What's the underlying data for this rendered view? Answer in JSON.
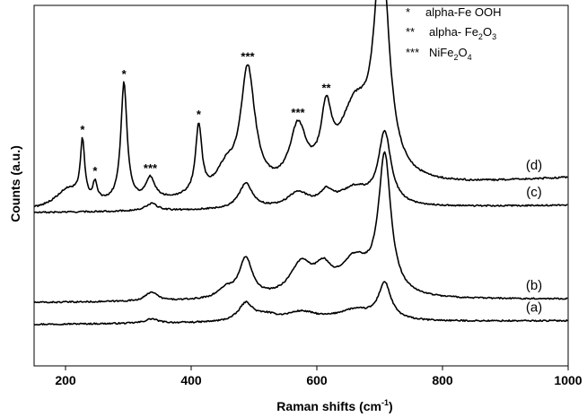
{
  "chart_data": {
    "type": "line",
    "xlabel": "Raman shifts (cm",
    "xlabel_sup": "-1",
    "xlabel_close": ")",
    "ylabel": "Counts (a.u.)",
    "xlim": [
      150,
      1000
    ],
    "xticks": [
      200,
      400,
      600,
      800,
      1000
    ],
    "ylim": [
      0,
      1
    ],
    "yticks_shown": false,
    "grid": false,
    "legend": {
      "placement": "top-right",
      "entries": [
        {
          "marker": "*",
          "text": "alpha-Fe OOH"
        },
        {
          "marker": "**",
          "text": "alpha- Fe",
          "sub1": "2",
          "mid": "O",
          "sub2": "3"
        },
        {
          "marker": "***",
          "text": "NiFe",
          "sub1": "2",
          "mid": "O",
          "sub2": "4"
        }
      ]
    },
    "series": [
      {
        "name": "(a)",
        "baseline": 0.115,
        "slope": 0.01,
        "noise": 0.004,
        "peaks": [
          {
            "center": 337,
            "height": 0.012,
            "width": 12
          },
          {
            "center": 487,
            "height": 0.05,
            "width": 14
          },
          {
            "center": 520,
            "height": 0.015,
            "width": 20
          },
          {
            "center": 575,
            "height": 0.025,
            "width": 30
          },
          {
            "center": 660,
            "height": 0.03,
            "width": 35
          },
          {
            "center": 708,
            "height": 0.1,
            "width": 12
          }
        ]
      },
      {
        "name": "(b)",
        "baseline": 0.175,
        "slope": 0.01,
        "noise": 0.004,
        "peaks": [
          {
            "center": 337,
            "height": 0.025,
            "width": 11
          },
          {
            "center": 455,
            "height": 0.025,
            "width": 15
          },
          {
            "center": 487,
            "height": 0.11,
            "width": 13
          },
          {
            "center": 575,
            "height": 0.09,
            "width": 22
          },
          {
            "center": 610,
            "height": 0.06,
            "width": 15
          },
          {
            "center": 660,
            "height": 0.1,
            "width": 30
          },
          {
            "center": 708,
            "height": 0.38,
            "width": 12
          }
        ]
      },
      {
        "name": "(c)",
        "baseline": 0.425,
        "slope": 0.02,
        "noise": 0.004,
        "peaks": [
          {
            "center": 337,
            "height": 0.02,
            "width": 11
          },
          {
            "center": 487,
            "height": 0.07,
            "width": 13
          },
          {
            "center": 570,
            "height": 0.04,
            "width": 20
          },
          {
            "center": 615,
            "height": 0.035,
            "width": 12
          },
          {
            "center": 660,
            "height": 0.05,
            "width": 30
          },
          {
            "center": 708,
            "height": 0.2,
            "width": 12
          }
        ]
      },
      {
        "name": "(d)",
        "baseline": 0.43,
        "slope": 0.09,
        "noise": 0.005,
        "peaks": [
          {
            "center": 205,
            "height": 0.05,
            "width": 25
          },
          {
            "center": 227,
            "height": 0.16,
            "width": 4
          },
          {
            "center": 247,
            "height": 0.05,
            "width": 4
          },
          {
            "center": 293,
            "height": 0.33,
            "width": 6
          },
          {
            "center": 335,
            "height": 0.06,
            "width": 9
          },
          {
            "center": 412,
            "height": 0.19,
            "width": 6
          },
          {
            "center": 455,
            "height": 0.06,
            "width": 18
          },
          {
            "center": 490,
            "height": 0.34,
            "width": 14
          },
          {
            "center": 570,
            "height": 0.16,
            "width": 16
          },
          {
            "center": 615,
            "height": 0.17,
            "width": 10
          },
          {
            "center": 660,
            "height": 0.2,
            "width": 30
          },
          {
            "center": 703,
            "height": 0.62,
            "width": 14
          }
        ]
      }
    ],
    "peak_annotations": [
      {
        "x": 227,
        "label": "*"
      },
      {
        "x": 247,
        "label": "*"
      },
      {
        "x": 293,
        "label": "*"
      },
      {
        "x": 335,
        "label": "***"
      },
      {
        "x": 412,
        "label": "*"
      },
      {
        "x": 490,
        "label": "***"
      },
      {
        "x": 570,
        "label": "***"
      },
      {
        "x": 615,
        "label": "**"
      },
      {
        "x": 703,
        "label": "***"
      }
    ]
  }
}
